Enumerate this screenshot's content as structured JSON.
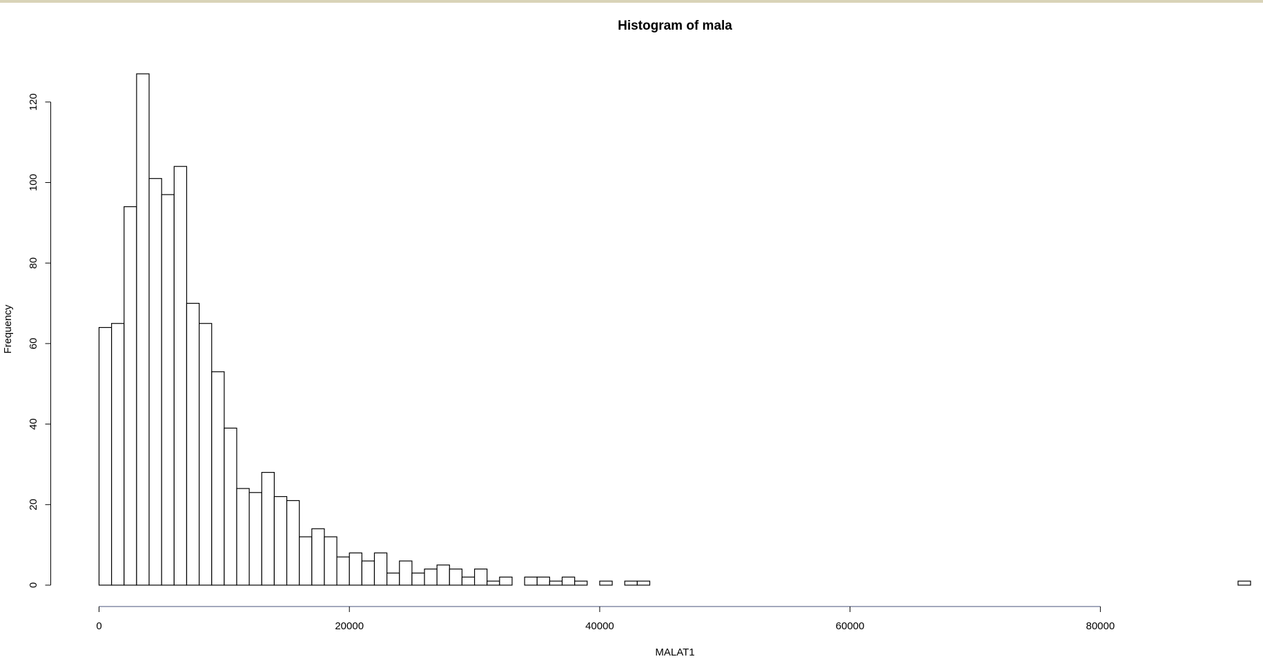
{
  "chart_data": {
    "type": "histogram",
    "title": "Histogram of mala",
    "x_label": "MALAT1",
    "y_label": "Frequency",
    "bins": [
      0,
      1000,
      2000,
      3000,
      4000,
      5000,
      6000,
      7000,
      8000,
      9000,
      10000,
      11000,
      12000,
      13000,
      14000,
      15000,
      16000,
      17000,
      18000,
      19000,
      20000,
      21000,
      22000,
      23000,
      24000,
      25000,
      26000,
      27000,
      28000,
      29000,
      30000,
      31000,
      32000,
      33000,
      34000,
      35000,
      36000,
      37000,
      38000,
      39000,
      40000,
      41000,
      42000,
      43000,
      44000,
      45000,
      46000,
      47000,
      48000,
      49000,
      50000,
      51000,
      52000,
      53000,
      54000,
      55000,
      56000,
      57000,
      58000,
      59000,
      60000,
      61000,
      62000,
      63000,
      64000,
      65000,
      66000,
      67000,
      68000,
      69000,
      70000,
      71000,
      72000,
      73000,
      74000,
      75000,
      76000,
      77000,
      78000,
      79000,
      80000,
      81000,
      82000,
      83000,
      84000,
      85000,
      86000,
      87000,
      88000,
      89000,
      90000,
      91000,
      92000
    ],
    "values": [
      64,
      65,
      94,
      127,
      101,
      97,
      104,
      70,
      65,
      53,
      39,
      24,
      23,
      28,
      22,
      21,
      12,
      14,
      12,
      7,
      8,
      6,
      8,
      3,
      6,
      3,
      4,
      5,
      4,
      2,
      4,
      1,
      2,
      0,
      2,
      2,
      1,
      2,
      1,
      0,
      1,
      0,
      1,
      1,
      0,
      0,
      0,
      0,
      0,
      0,
      0,
      0,
      0,
      0,
      0,
      0,
      0,
      0,
      0,
      0,
      0,
      0,
      0,
      0,
      0,
      0,
      0,
      0,
      0,
      0,
      0,
      0,
      0,
      0,
      0,
      0,
      0,
      0,
      0,
      0,
      0,
      0,
      0,
      0,
      0,
      0,
      0,
      0,
      0,
      0,
      0,
      1
    ],
    "color": "#ffffff",
    "xlim": [
      0,
      92000
    ],
    "xticks": [
      0,
      20000,
      40000,
      60000,
      80000
    ],
    "ylim": [
      0,
      127
    ],
    "yticks": [
      0,
      20,
      40,
      60,
      80,
      100,
      120
    ],
    "grid": false
  }
}
